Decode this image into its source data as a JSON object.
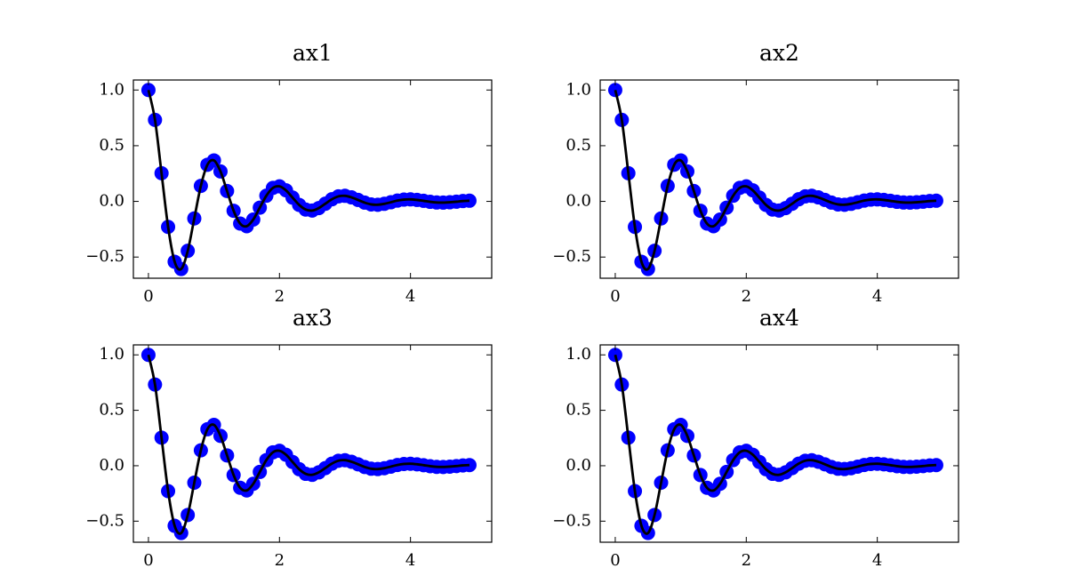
{
  "chart_data": [
    {
      "type": "line",
      "title": "ax1",
      "x": [
        0,
        0.1,
        0.2,
        0.3,
        0.4,
        0.5,
        0.6,
        0.7,
        0.8,
        0.9,
        1,
        1.1,
        1.2,
        1.3,
        1.4,
        1.5,
        1.6,
        1.7,
        1.8,
        1.9,
        2,
        2.1,
        2.2,
        2.3,
        2.4,
        2.5,
        2.6,
        2.7,
        2.8,
        2.9,
        3,
        3.1,
        3.2,
        3.3,
        3.4,
        3.5,
        3.6,
        3.7,
        3.8,
        3.9,
        4,
        4.1,
        4.2,
        4.3,
        4.4,
        4.5,
        4.6,
        4.7,
        4.8,
        4.9
      ],
      "series": [
        {
          "style": "markers",
          "color": "#0000ff",
          "values": [
            1,
            0.732,
            0.253,
            -0.229,
            -0.542,
            -0.607,
            -0.444,
            -0.153,
            0.139,
            0.329,
            0.368,
            0.269,
            0.093,
            -0.084,
            -0.199,
            -0.223,
            -0.163,
            -0.056,
            0.051,
            0.121,
            0.135,
            0.099,
            0.034,
            -0.031,
            -0.073,
            -0.082,
            -0.06,
            -0.021,
            0.019,
            0.045,
            0.05,
            0.036,
            0.013,
            -0.011,
            -0.027,
            -0.03,
            -0.022,
            -0.008,
            0.007,
            0.016,
            0.018,
            0.013,
            0.005,
            -0.004,
            -0.01,
            -0.011,
            -0.008,
            -0.003,
            0.003,
            0.006
          ]
        },
        {
          "style": "line",
          "color": "#000000",
          "values": [
            1,
            0.732,
            0.253,
            -0.229,
            -0.542,
            -0.607,
            -0.444,
            -0.153,
            0.139,
            0.329,
            0.368,
            0.269,
            0.093,
            -0.084,
            -0.199,
            -0.223,
            -0.163,
            -0.056,
            0.051,
            0.121,
            0.135,
            0.099,
            0.034,
            -0.031,
            -0.073,
            -0.082,
            -0.06,
            -0.021,
            0.019,
            0.045,
            0.05,
            0.036,
            0.013,
            -0.011,
            -0.027,
            -0.03,
            -0.022,
            -0.008,
            0.007,
            0.016,
            0.018,
            0.013,
            0.005,
            -0.004,
            -0.01,
            -0.011,
            -0.008,
            -0.003,
            0.003,
            0.006
          ]
        }
      ],
      "xlim": [
        -0.23,
        5.24
      ],
      "ylim": [
        -0.69,
        1.09
      ],
      "xticks": [
        0,
        2,
        4
      ],
      "yticks": [
        {
          "value": -0.5,
          "label": "−0.5"
        },
        {
          "value": 0,
          "label": "0.0"
        },
        0.5,
        {
          "value": 1,
          "label": "1.0"
        }
      ]
    },
    {
      "type": "line",
      "title": "ax2",
      "x": [
        0,
        0.1,
        0.2,
        0.3,
        0.4,
        0.5,
        0.6,
        0.7,
        0.8,
        0.9,
        1,
        1.1,
        1.2,
        1.3,
        1.4,
        1.5,
        1.6,
        1.7,
        1.8,
        1.9,
        2,
        2.1,
        2.2,
        2.3,
        2.4,
        2.5,
        2.6,
        2.7,
        2.8,
        2.9,
        3,
        3.1,
        3.2,
        3.3,
        3.4,
        3.5,
        3.6,
        3.7,
        3.8,
        3.9,
        4,
        4.1,
        4.2,
        4.3,
        4.4,
        4.5,
        4.6,
        4.7,
        4.8,
        4.9
      ],
      "series": [
        {
          "style": "markers",
          "color": "#0000ff",
          "values": [
            1,
            0.732,
            0.253,
            -0.229,
            -0.542,
            -0.607,
            -0.444,
            -0.153,
            0.139,
            0.329,
            0.368,
            0.269,
            0.093,
            -0.084,
            -0.199,
            -0.223,
            -0.163,
            -0.056,
            0.051,
            0.121,
            0.135,
            0.099,
            0.034,
            -0.031,
            -0.073,
            -0.082,
            -0.06,
            -0.021,
            0.019,
            0.045,
            0.05,
            0.036,
            0.013,
            -0.011,
            -0.027,
            -0.03,
            -0.022,
            -0.008,
            0.007,
            0.016,
            0.018,
            0.013,
            0.005,
            -0.004,
            -0.01,
            -0.011,
            -0.008,
            -0.003,
            0.003,
            0.006
          ]
        },
        {
          "style": "line",
          "color": "#000000",
          "values": [
            1,
            0.732,
            0.253,
            -0.229,
            -0.542,
            -0.607,
            -0.444,
            -0.153,
            0.139,
            0.329,
            0.368,
            0.269,
            0.093,
            -0.084,
            -0.199,
            -0.223,
            -0.163,
            -0.056,
            0.051,
            0.121,
            0.135,
            0.099,
            0.034,
            -0.031,
            -0.073,
            -0.082,
            -0.06,
            -0.021,
            0.019,
            0.045,
            0.05,
            0.036,
            0.013,
            -0.011,
            -0.027,
            -0.03,
            -0.022,
            -0.008,
            0.007,
            0.016,
            0.018,
            0.013,
            0.005,
            -0.004,
            -0.01,
            -0.011,
            -0.008,
            -0.003,
            0.003,
            0.006
          ]
        }
      ],
      "xlim": [
        -0.23,
        5.24
      ],
      "ylim": [
        -0.69,
        1.09
      ],
      "xticks": [
        0,
        2,
        4
      ],
      "yticks": [
        {
          "value": -0.5,
          "label": "−0.5"
        },
        {
          "value": 0,
          "label": "0.0"
        },
        0.5,
        {
          "value": 1,
          "label": "1.0"
        }
      ]
    },
    {
      "type": "line",
      "title": "ax3",
      "x": [
        0,
        0.1,
        0.2,
        0.3,
        0.4,
        0.5,
        0.6,
        0.7,
        0.8,
        0.9,
        1,
        1.1,
        1.2,
        1.3,
        1.4,
        1.5,
        1.6,
        1.7,
        1.8,
        1.9,
        2,
        2.1,
        2.2,
        2.3,
        2.4,
        2.5,
        2.6,
        2.7,
        2.8,
        2.9,
        3,
        3.1,
        3.2,
        3.3,
        3.4,
        3.5,
        3.6,
        3.7,
        3.8,
        3.9,
        4,
        4.1,
        4.2,
        4.3,
        4.4,
        4.5,
        4.6,
        4.7,
        4.8,
        4.9
      ],
      "series": [
        {
          "style": "markers",
          "color": "#0000ff",
          "values": [
            1,
            0.732,
            0.253,
            -0.229,
            -0.542,
            -0.607,
            -0.444,
            -0.153,
            0.139,
            0.329,
            0.368,
            0.269,
            0.093,
            -0.084,
            -0.199,
            -0.223,
            -0.163,
            -0.056,
            0.051,
            0.121,
            0.135,
            0.099,
            0.034,
            -0.031,
            -0.073,
            -0.082,
            -0.06,
            -0.021,
            0.019,
            0.045,
            0.05,
            0.036,
            0.013,
            -0.011,
            -0.027,
            -0.03,
            -0.022,
            -0.008,
            0.007,
            0.016,
            0.018,
            0.013,
            0.005,
            -0.004,
            -0.01,
            -0.011,
            -0.008,
            -0.003,
            0.003,
            0.006
          ]
        },
        {
          "style": "line",
          "color": "#000000",
          "values": [
            1,
            0.732,
            0.253,
            -0.229,
            -0.542,
            -0.607,
            -0.444,
            -0.153,
            0.139,
            0.329,
            0.368,
            0.269,
            0.093,
            -0.084,
            -0.199,
            -0.223,
            -0.163,
            -0.056,
            0.051,
            0.121,
            0.135,
            0.099,
            0.034,
            -0.031,
            -0.073,
            -0.082,
            -0.06,
            -0.021,
            0.019,
            0.045,
            0.05,
            0.036,
            0.013,
            -0.011,
            -0.027,
            -0.03,
            -0.022,
            -0.008,
            0.007,
            0.016,
            0.018,
            0.013,
            0.005,
            -0.004,
            -0.01,
            -0.011,
            -0.008,
            -0.003,
            0.003,
            0.006
          ]
        }
      ],
      "xlim": [
        -0.23,
        5.24
      ],
      "ylim": [
        -0.69,
        1.09
      ],
      "xticks": [
        0,
        2,
        4
      ],
      "yticks": [
        {
          "value": -0.5,
          "label": "−0.5"
        },
        {
          "value": 0,
          "label": "0.0"
        },
        0.5,
        {
          "value": 1,
          "label": "1.0"
        }
      ]
    },
    {
      "type": "line",
      "title": "ax4",
      "x": [
        0,
        0.1,
        0.2,
        0.3,
        0.4,
        0.5,
        0.6,
        0.7,
        0.8,
        0.9,
        1,
        1.1,
        1.2,
        1.3,
        1.4,
        1.5,
        1.6,
        1.7,
        1.8,
        1.9,
        2,
        2.1,
        2.2,
        2.3,
        2.4,
        2.5,
        2.6,
        2.7,
        2.8,
        2.9,
        3,
        3.1,
        3.2,
        3.3,
        3.4,
        3.5,
        3.6,
        3.7,
        3.8,
        3.9,
        4,
        4.1,
        4.2,
        4.3,
        4.4,
        4.5,
        4.6,
        4.7,
        4.8,
        4.9
      ],
      "series": [
        {
          "style": "markers",
          "color": "#0000ff",
          "values": [
            1,
            0.732,
            0.253,
            -0.229,
            -0.542,
            -0.607,
            -0.444,
            -0.153,
            0.139,
            0.329,
            0.368,
            0.269,
            0.093,
            -0.084,
            -0.199,
            -0.223,
            -0.163,
            -0.056,
            0.051,
            0.121,
            0.135,
            0.099,
            0.034,
            -0.031,
            -0.073,
            -0.082,
            -0.06,
            -0.021,
            0.019,
            0.045,
            0.05,
            0.036,
            0.013,
            -0.011,
            -0.027,
            -0.03,
            -0.022,
            -0.008,
            0.007,
            0.016,
            0.018,
            0.013,
            0.005,
            -0.004,
            -0.01,
            -0.011,
            -0.008,
            -0.003,
            0.003,
            0.006
          ]
        },
        {
          "style": "line",
          "color": "#000000",
          "values": [
            1,
            0.732,
            0.253,
            -0.229,
            -0.542,
            -0.607,
            -0.444,
            -0.153,
            0.139,
            0.329,
            0.368,
            0.269,
            0.093,
            -0.084,
            -0.199,
            -0.223,
            -0.163,
            -0.056,
            0.051,
            0.121,
            0.135,
            0.099,
            0.034,
            -0.031,
            -0.073,
            -0.082,
            -0.06,
            -0.021,
            0.019,
            0.045,
            0.05,
            0.036,
            0.013,
            -0.011,
            -0.027,
            -0.03,
            -0.022,
            -0.008,
            0.007,
            0.016,
            0.018,
            0.013,
            0.005,
            -0.004,
            -0.01,
            -0.011,
            -0.008,
            -0.003,
            0.003,
            0.006
          ]
        }
      ],
      "xlim": [
        -0.23,
        5.24
      ],
      "ylim": [
        -0.69,
        1.09
      ],
      "xticks": [
        0,
        2,
        4
      ],
      "yticks": [
        {
          "value": -0.5,
          "label": "−0.5"
        },
        {
          "value": 0,
          "label": "0.0"
        },
        0.5,
        {
          "value": 1,
          "label": "1.0"
        }
      ]
    }
  ]
}
